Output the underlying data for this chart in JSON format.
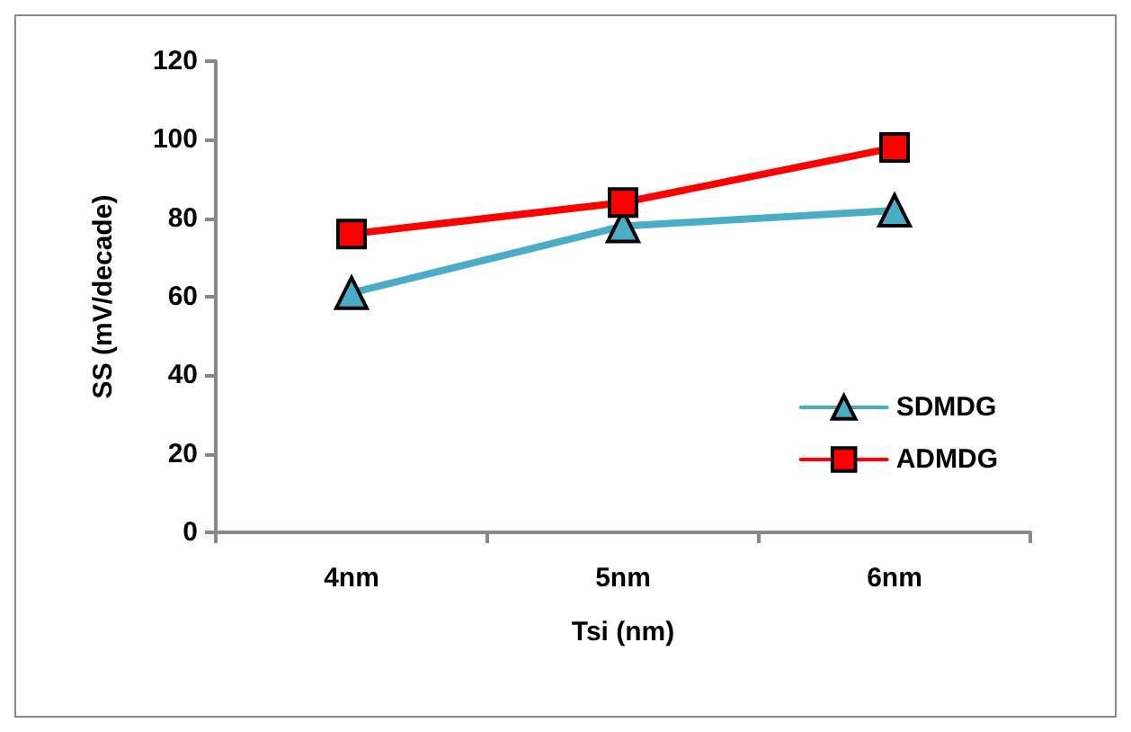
{
  "chart_data": {
    "type": "line",
    "xlabel": "Tsi (nm)",
    "ylabel": "SS (mV/decade)",
    "categories": [
      "4nm",
      "5nm",
      "6nm"
    ],
    "series": [
      {
        "name": "SDMDG",
        "color": "#4bacc6",
        "values": [
          61,
          78,
          82
        ],
        "marker": "triangle"
      },
      {
        "name": "ADMDG",
        "color": "#ff0000",
        "values": [
          76,
          84,
          98
        ],
        "marker": "square"
      }
    ],
    "ylim": [
      0,
      120
    ],
    "yticks": [
      0,
      20,
      40,
      60,
      80,
      100,
      120
    ],
    "grid": false,
    "legend": "right",
    "line_style": "solid"
  }
}
